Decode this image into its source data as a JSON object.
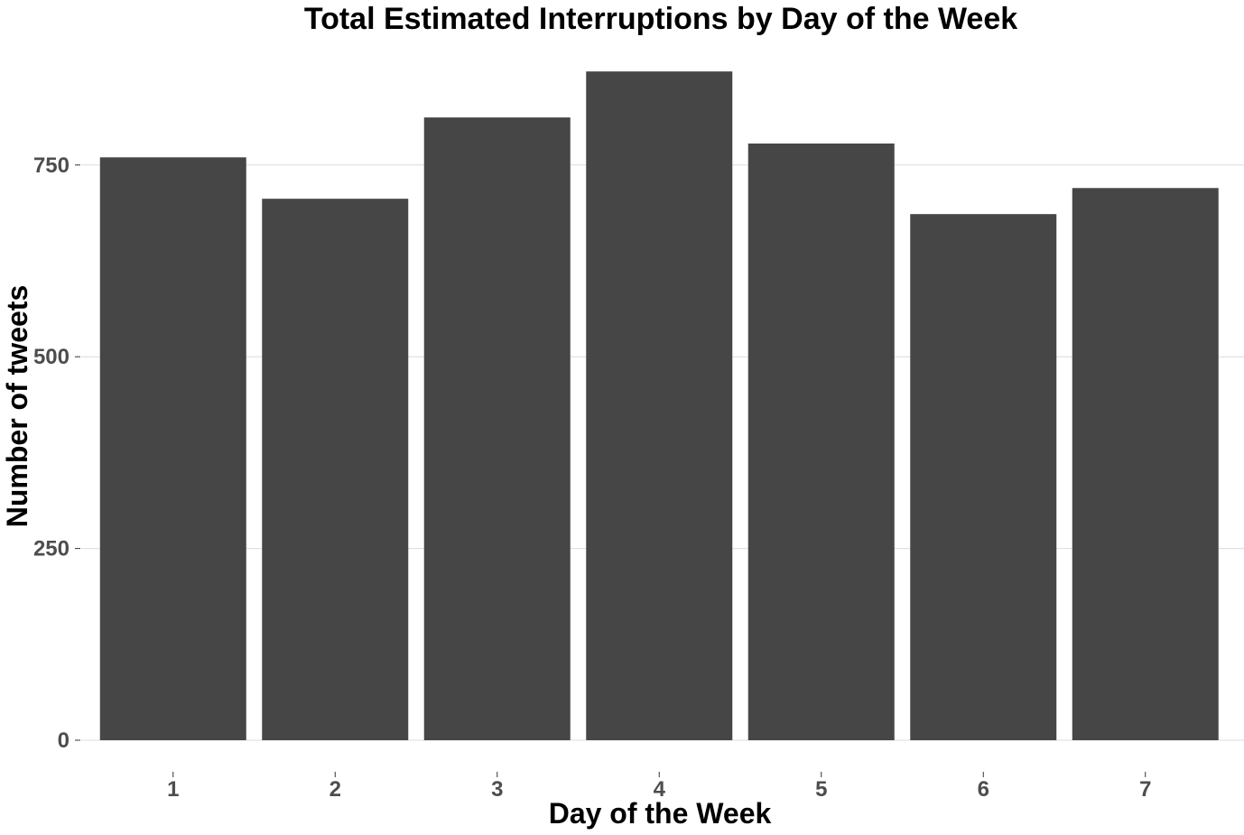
{
  "chart_data": {
    "type": "bar",
    "title": "Total Estimated Interruptions by Day of the Week",
    "xlabel": "Day of the Week",
    "ylabel": "Number of tweets",
    "categories": [
      "1",
      "2",
      "3",
      "4",
      "5",
      "6",
      "7"
    ],
    "values": [
      760,
      706,
      812,
      872,
      778,
      686,
      720
    ],
    "ylim": [
      0,
      900
    ],
    "yticks": [
      0,
      250,
      500,
      750
    ],
    "grid": true,
    "legend": "none",
    "bar_color": "#464646",
    "grid_color": "#dcdcdc"
  }
}
